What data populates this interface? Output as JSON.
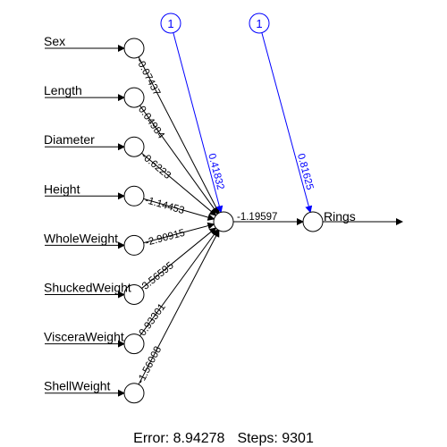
{
  "colors": {
    "line": "#000000",
    "bias": "#0000ff",
    "node_fill": "#ffffff"
  },
  "inputs": [
    "Sex",
    "Length",
    "Diameter",
    "Height",
    "WholeWeight",
    "ShuckedWeight",
    "VisceraWeight",
    "ShellWeight"
  ],
  "input_weights": [
    "-0.07437",
    "0.04984",
    "-0.6223",
    "-1.14453",
    "-2.90915",
    "3.56595",
    "0.93301",
    "-1.56008"
  ],
  "bias_labels": [
    "1",
    "1"
  ],
  "bias_weights": [
    "0.41832",
    "0.81625"
  ],
  "hidden_to_output_weight": "-1.19597",
  "output_label": "Rings",
  "footer": {
    "error_label": "Error: 8.94278",
    "steps_label": "Steps: 9301"
  }
}
